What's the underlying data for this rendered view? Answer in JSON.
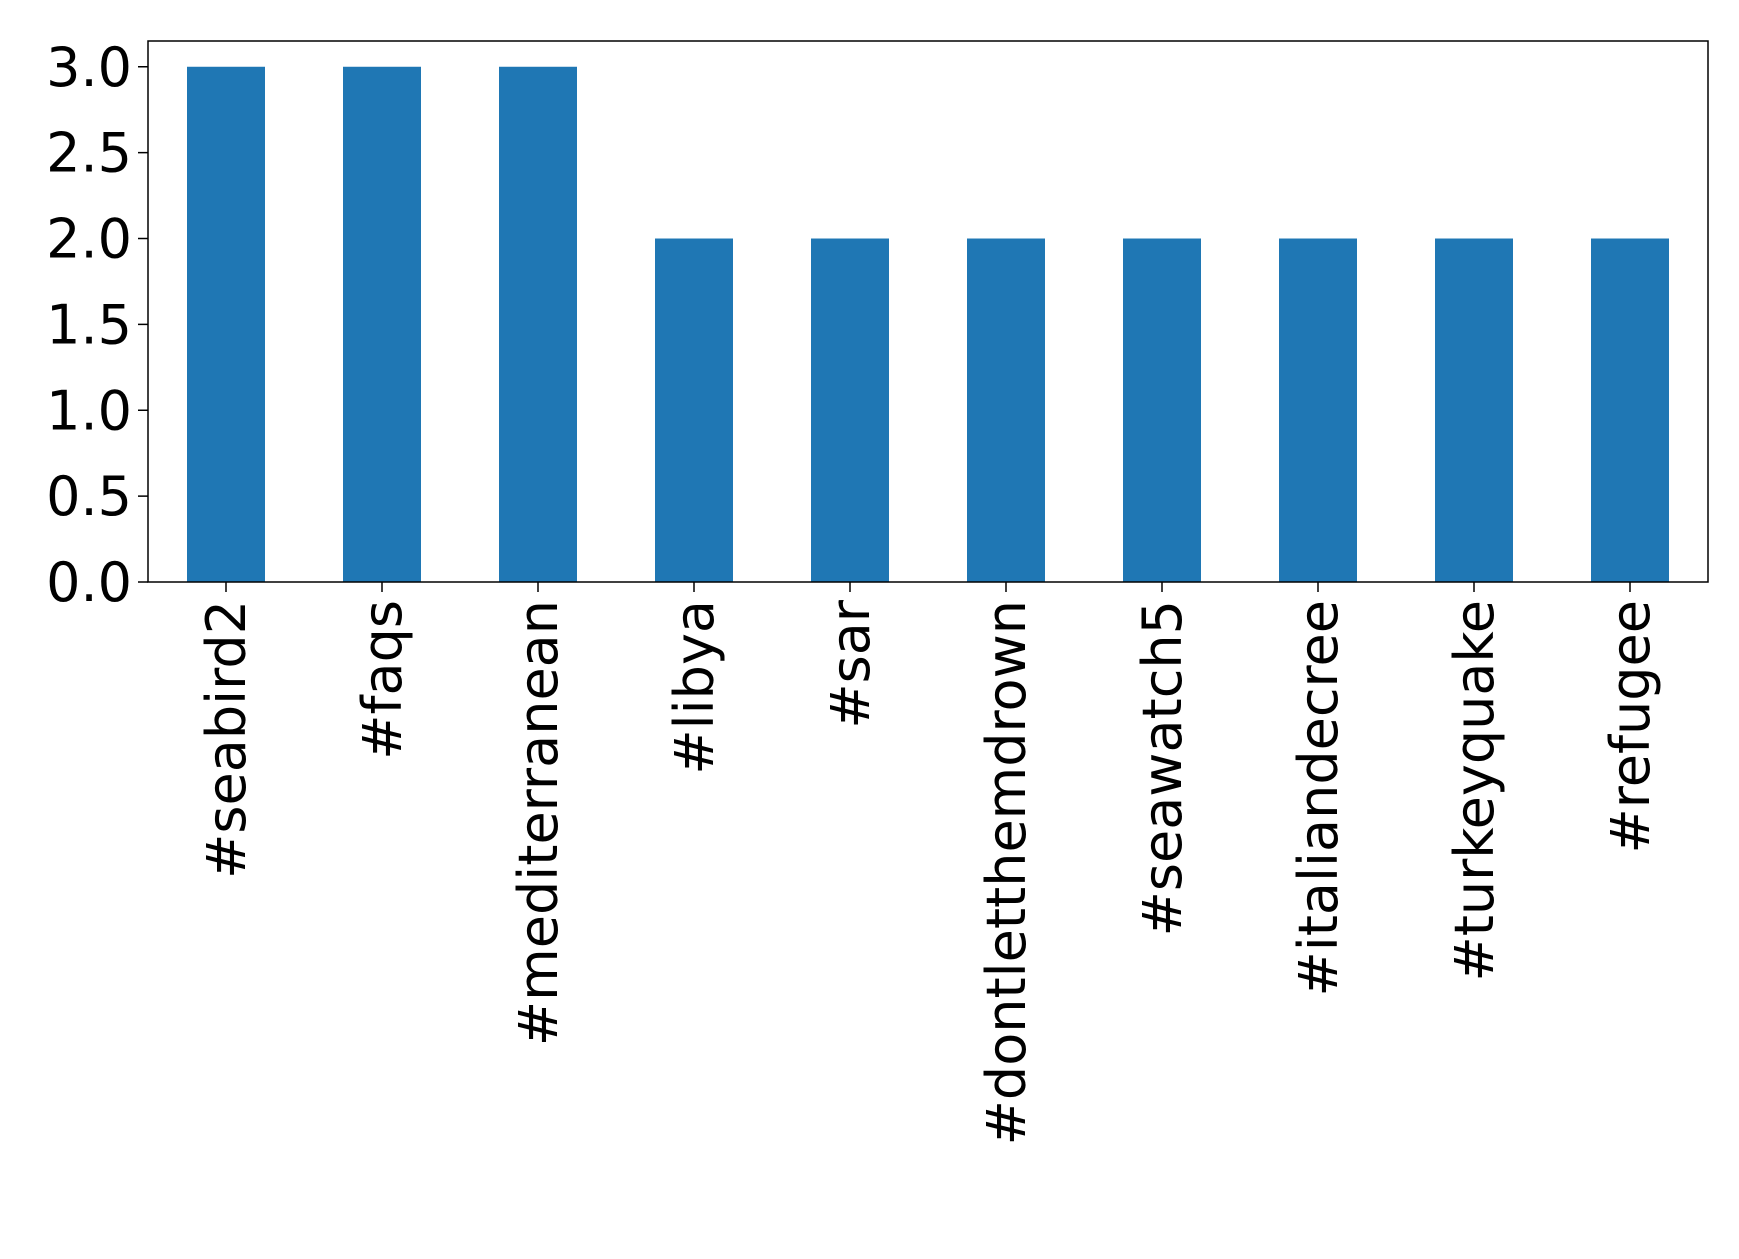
{
  "chart_data": {
    "type": "bar",
    "categories": [
      "#seabird2",
      "#faqs",
      "#mediterranean",
      "#libya",
      "#sar",
      "#dontletthemdrown",
      "#seawatch5",
      "#italiandecree",
      "#turkeyquake",
      "#refugee"
    ],
    "values": [
      3,
      3,
      3,
      2,
      2,
      2,
      2,
      2,
      2,
      2
    ],
    "color": "#1f77b4",
    "ylim": [
      0,
      3.15
    ],
    "yticks": [
      {
        "value": 0,
        "label": "0.0"
      },
      0.5,
      {
        "value": 1,
        "label": "1.0"
      },
      1.5,
      {
        "value": 2,
        "label": "2.0"
      },
      2.5,
      {
        "value": 3,
        "label": "3.0"
      }
    ],
    "grid": false
  }
}
